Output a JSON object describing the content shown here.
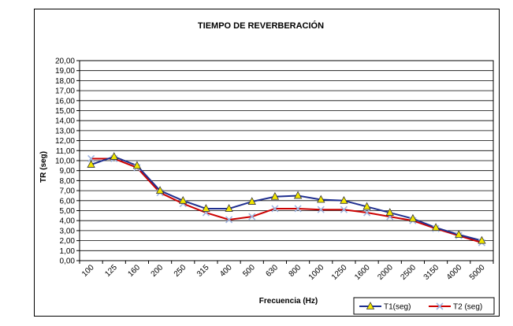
{
  "chart_data": {
    "type": "line",
    "title": "TIEMPO DE REVERBERACIÓN",
    "xlabel": "Frecuencia (Hz)",
    "ylabel": "TR (seg)",
    "categories": [
      "100",
      "125",
      "160",
      "200",
      "250",
      "315",
      "400",
      "500",
      "630",
      "800",
      "1000",
      "1250",
      "1600",
      "2000",
      "2500",
      "3150",
      "4000",
      "5000"
    ],
    "ylim": [
      0,
      20
    ],
    "ytick_step": 1,
    "ytick_labels": [
      "0,00",
      "1,00",
      "2,00",
      "3,00",
      "4,00",
      "5,00",
      "6,00",
      "7,00",
      "8,00",
      "9,00",
      "10,00",
      "11,00",
      "12,00",
      "13,00",
      "14,00",
      "15,00",
      "16,00",
      "17,00",
      "18,00",
      "19,00",
      "20,00"
    ],
    "grid": true,
    "legend_position": "bottom-right",
    "series": [
      {
        "name": "T1(seg)",
        "color": "#1f2f8f",
        "marker": "triangle",
        "marker_fill": "#f2e600",
        "values": [
          9.6,
          10.4,
          9.5,
          7.0,
          6.0,
          5.2,
          5.2,
          5.9,
          6.4,
          6.5,
          6.1,
          6.0,
          5.4,
          4.8,
          4.2,
          3.3,
          2.6,
          2.0
        ]
      },
      {
        "name": "T2 (seg)",
        "color": "#cc0000",
        "marker": "x",
        "marker_fill": "#9fb4e0",
        "values": [
          10.2,
          10.2,
          9.3,
          6.8,
          5.7,
          4.8,
          4.1,
          4.4,
          5.2,
          5.2,
          5.1,
          5.1,
          4.8,
          4.4,
          4.0,
          3.2,
          2.5,
          1.8
        ]
      }
    ]
  }
}
